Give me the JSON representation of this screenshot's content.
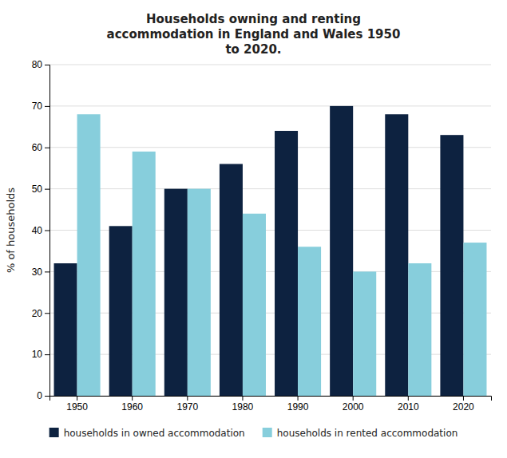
{
  "chart_data": {
    "type": "bar",
    "title": "Households owning and renting\naccommodation in England and Wales 1950\nto 2020.",
    "categories": [
      "1950",
      "1960",
      "1970",
      "1980",
      "1990",
      "2000",
      "2010",
      "2020"
    ],
    "series": [
      {
        "name": "households in owned accommodation",
        "color": "#0d2240",
        "values": [
          32,
          41,
          50,
          56,
          64,
          70,
          68,
          63
        ]
      },
      {
        "name": "households in rented accommodation",
        "color": "#87cedc",
        "values": [
          68,
          59,
          50,
          44,
          36,
          30,
          32,
          37
        ]
      }
    ],
    "ylabel": "% of households",
    "ylim": [
      0,
      80
    ],
    "yticks": [
      0,
      10,
      20,
      30,
      40,
      50,
      60,
      70,
      80
    ],
    "grid": true,
    "legend": "bottom"
  }
}
